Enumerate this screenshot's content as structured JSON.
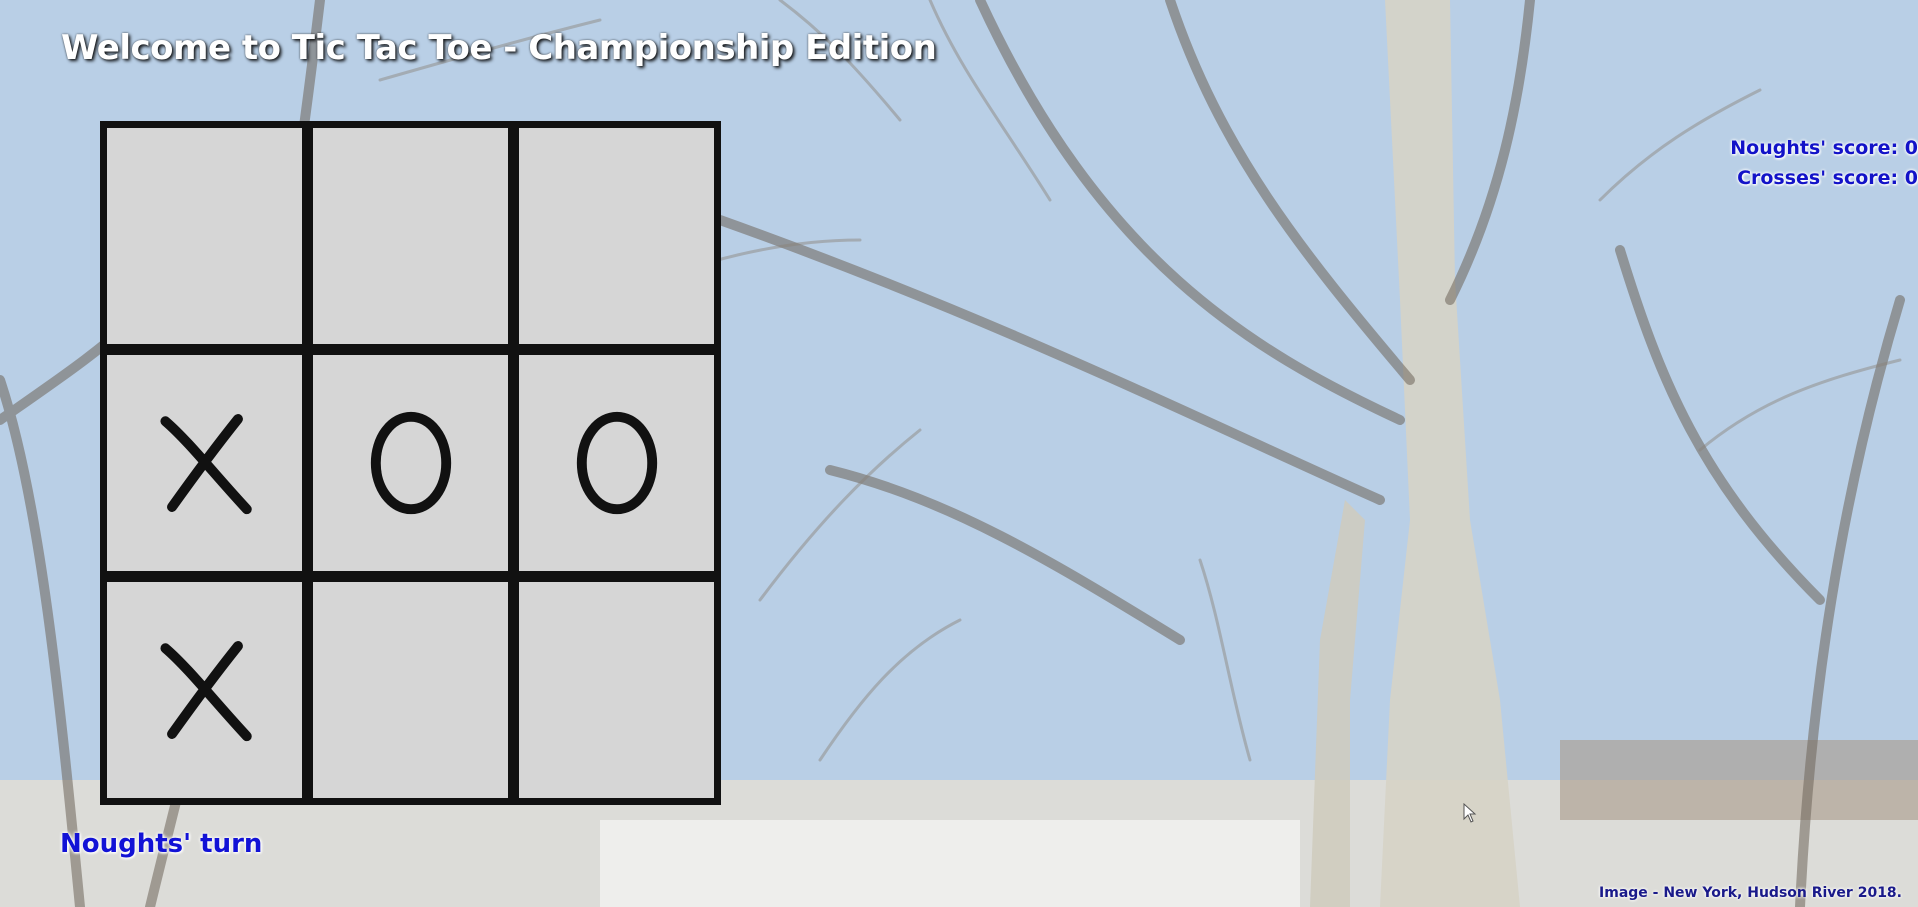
{
  "title": "Welcome to Tic Tac Toe - Championship Edition",
  "board": {
    "cells": [
      "",
      "",
      "",
      "X",
      "O",
      "O",
      "X",
      "",
      ""
    ]
  },
  "scores": {
    "noughts": "Noughts' score: 0",
    "crosses": "Crosses' score: 0"
  },
  "status": {
    "turn": "Noughts' turn"
  },
  "credit": "Image - New York, Hudson River 2018.",
  "colors": {
    "grid": "#111111",
    "cell_bg": "#f7f7f7",
    "score_text": "#1212c8",
    "turn_text": "#1212d6",
    "title_text": "#ffffff"
  },
  "icons": {
    "cross": "cross-mark-icon",
    "nought": "nought-mark-icon",
    "cursor": "mouse-pointer-icon"
  }
}
